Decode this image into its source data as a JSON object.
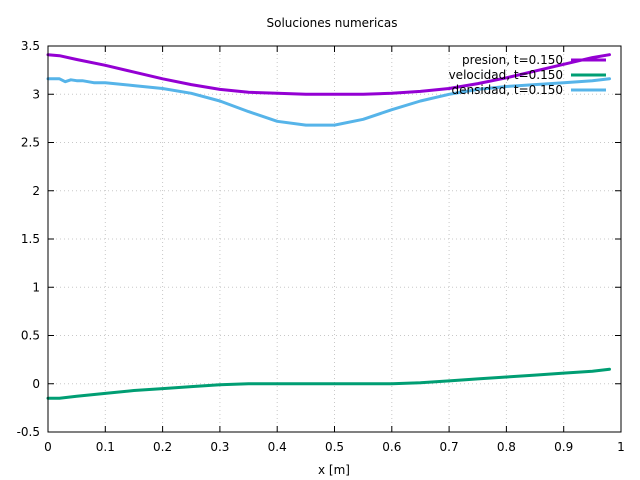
{
  "chart_data": {
    "type": "line",
    "title": "Soluciones numericas",
    "xlabel": "x [m]",
    "ylabel": "",
    "xlim": [
      0,
      1
    ],
    "ylim": [
      -0.5,
      3.5
    ],
    "grid": true,
    "legend_position": "top-right",
    "x_ticks": [
      "0",
      "0.1",
      "0.2",
      "0.3",
      "0.4",
      "0.5",
      "0.6",
      "0.7",
      "0.8",
      "0.9",
      "1"
    ],
    "y_ticks": [
      "-0.5",
      "0",
      "0.5",
      "1",
      "1.5",
      "2",
      "2.5",
      "3",
      "3.5"
    ],
    "x_tick_values": [
      0,
      0.1,
      0.2,
      0.3,
      0.4,
      0.5,
      0.6,
      0.7,
      0.8,
      0.9,
      1
    ],
    "y_tick_values": [
      -0.5,
      0,
      0.5,
      1,
      1.5,
      2,
      2.5,
      3,
      3.5
    ],
    "series": [
      {
        "name": "presion, t=0.150",
        "color": "#9400d3",
        "x": [
          0,
          0.02,
          0.05,
          0.1,
          0.15,
          0.2,
          0.25,
          0.3,
          0.35,
          0.4,
          0.45,
          0.5,
          0.55,
          0.6,
          0.65,
          0.7,
          0.75,
          0.8,
          0.85,
          0.9,
          0.95,
          0.98
        ],
        "y": [
          3.41,
          3.4,
          3.36,
          3.3,
          3.23,
          3.16,
          3.1,
          3.05,
          3.02,
          3.01,
          3.0,
          3.0,
          3.0,
          3.01,
          3.03,
          3.06,
          3.11,
          3.17,
          3.24,
          3.31,
          3.38,
          3.41
        ]
      },
      {
        "name": "velocidad, t=0.150",
        "color": "#009e73",
        "x": [
          0,
          0.02,
          0.05,
          0.1,
          0.15,
          0.2,
          0.25,
          0.3,
          0.35,
          0.4,
          0.45,
          0.5,
          0.55,
          0.6,
          0.65,
          0.7,
          0.75,
          0.8,
          0.85,
          0.9,
          0.95,
          0.98
        ],
        "y": [
          -0.15,
          -0.15,
          -0.13,
          -0.1,
          -0.07,
          -0.05,
          -0.03,
          -0.01,
          0.0,
          0.0,
          0.0,
          0.0,
          0.0,
          0.0,
          0.01,
          0.03,
          0.05,
          0.07,
          0.09,
          0.11,
          0.13,
          0.15
        ]
      },
      {
        "name": "densidad, t=0.150",
        "color": "#56b4e9",
        "x": [
          0,
          0.02,
          0.03,
          0.04,
          0.05,
          0.06,
          0.08,
          0.1,
          0.15,
          0.2,
          0.25,
          0.3,
          0.35,
          0.4,
          0.45,
          0.5,
          0.55,
          0.6,
          0.65,
          0.7,
          0.75,
          0.8,
          0.85,
          0.9,
          0.95,
          0.98
        ],
        "y": [
          3.16,
          3.16,
          3.13,
          3.15,
          3.14,
          3.14,
          3.12,
          3.12,
          3.09,
          3.06,
          3.01,
          2.93,
          2.82,
          2.72,
          2.68,
          2.68,
          2.74,
          2.84,
          2.93,
          3.0,
          3.05,
          3.08,
          3.1,
          3.12,
          3.14,
          3.16
        ]
      }
    ]
  }
}
